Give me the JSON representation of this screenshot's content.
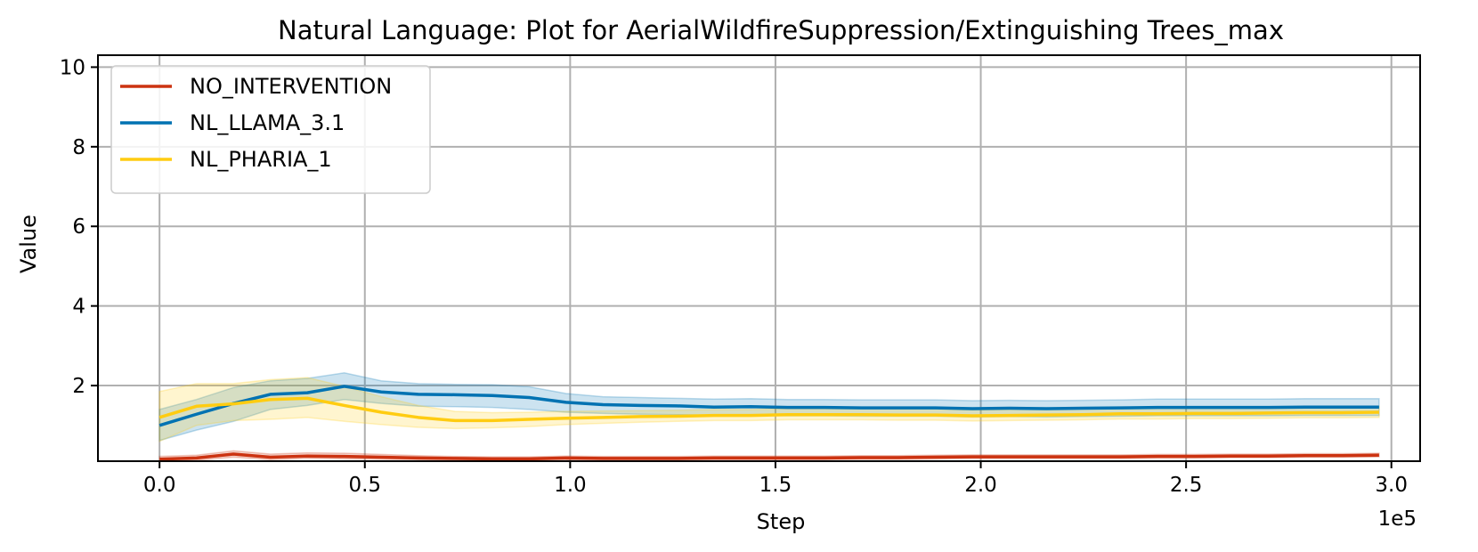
{
  "chart_data": {
    "type": "line",
    "title": "Natural Language: Plot for AerialWildfireSuppression/Extinguishing Trees_max",
    "xlabel": "Step",
    "ylabel": "Value",
    "x_offset_label": "1e5",
    "xlim": [
      -0.15,
      3.07
    ],
    "ylim": [
      0.1,
      10.3
    ],
    "x_ticks": [
      0.0,
      0.5,
      1.0,
      1.5,
      2.0,
      2.5,
      3.0
    ],
    "x_tick_labels": [
      "0.0",
      "0.5",
      "1.0",
      "1.5",
      "2.0",
      "2.5",
      "3.0"
    ],
    "y_ticks": [
      2,
      4,
      6,
      8,
      10
    ],
    "y_tick_labels": [
      "2",
      "4",
      "6",
      "8",
      "10"
    ],
    "grid": true,
    "legend_position": "top-left",
    "x": [
      0.0,
      0.09,
      0.18,
      0.27,
      0.36,
      0.45,
      0.54,
      0.63,
      0.72,
      0.81,
      0.9,
      0.99,
      1.08,
      1.17,
      1.26,
      1.35,
      1.44,
      1.53,
      1.62,
      1.71,
      1.8,
      1.89,
      1.98,
      2.07,
      2.16,
      2.25,
      2.34,
      2.43,
      2.52,
      2.61,
      2.7,
      2.79,
      2.88,
      2.97
    ],
    "series": [
      {
        "name": "NO_INTERVENTION",
        "color": "#cc3311",
        "values": [
          0.15,
          0.18,
          0.28,
          0.2,
          0.23,
          0.22,
          0.2,
          0.18,
          0.17,
          0.16,
          0.16,
          0.18,
          0.17,
          0.17,
          0.17,
          0.18,
          0.18,
          0.18,
          0.18,
          0.19,
          0.19,
          0.2,
          0.21,
          0.21,
          0.21,
          0.21,
          0.21,
          0.22,
          0.22,
          0.23,
          0.23,
          0.24,
          0.24,
          0.25
        ],
        "lower": [
          0.1,
          0.12,
          0.2,
          0.14,
          0.17,
          0.16,
          0.15,
          0.14,
          0.13,
          0.12,
          0.12,
          0.14,
          0.13,
          0.13,
          0.13,
          0.14,
          0.14,
          0.14,
          0.14,
          0.15,
          0.15,
          0.16,
          0.17,
          0.17,
          0.17,
          0.17,
          0.17,
          0.18,
          0.18,
          0.19,
          0.19,
          0.2,
          0.2,
          0.21
        ],
        "upper": [
          0.22,
          0.25,
          0.36,
          0.28,
          0.31,
          0.3,
          0.27,
          0.24,
          0.22,
          0.21,
          0.21,
          0.23,
          0.22,
          0.22,
          0.22,
          0.23,
          0.23,
          0.23,
          0.23,
          0.24,
          0.24,
          0.25,
          0.26,
          0.26,
          0.26,
          0.26,
          0.26,
          0.27,
          0.27,
          0.28,
          0.28,
          0.29,
          0.29,
          0.3
        ]
      },
      {
        "name": "NL_LLAMA_3.1",
        "color": "#0072b2",
        "values": [
          1.0,
          1.28,
          1.55,
          1.78,
          1.82,
          1.98,
          1.84,
          1.78,
          1.77,
          1.75,
          1.7,
          1.58,
          1.52,
          1.5,
          1.49,
          1.46,
          1.47,
          1.45,
          1.45,
          1.44,
          1.44,
          1.44,
          1.42,
          1.43,
          1.42,
          1.43,
          1.44,
          1.45,
          1.45,
          1.45,
          1.45,
          1.46,
          1.46,
          1.46
        ],
        "lower": [
          0.62,
          0.88,
          1.1,
          1.4,
          1.5,
          1.65,
          1.55,
          1.48,
          1.47,
          1.45,
          1.4,
          1.33,
          1.3,
          1.28,
          1.27,
          1.25,
          1.26,
          1.24,
          1.24,
          1.23,
          1.23,
          1.23,
          1.21,
          1.22,
          1.21,
          1.22,
          1.23,
          1.24,
          1.24,
          1.24,
          1.24,
          1.25,
          1.25,
          1.25
        ],
        "upper": [
          1.4,
          1.65,
          1.95,
          2.12,
          2.18,
          2.32,
          2.12,
          2.05,
          2.03,
          2.02,
          1.97,
          1.8,
          1.72,
          1.7,
          1.68,
          1.66,
          1.67,
          1.65,
          1.65,
          1.64,
          1.64,
          1.64,
          1.62,
          1.63,
          1.62,
          1.63,
          1.64,
          1.66,
          1.66,
          1.66,
          1.66,
          1.67,
          1.67,
          1.67
        ]
      },
      {
        "name": "NL_PHARIA_1",
        "color": "#ffcc11",
        "values": [
          1.2,
          1.48,
          1.54,
          1.65,
          1.68,
          1.5,
          1.33,
          1.2,
          1.12,
          1.12,
          1.15,
          1.18,
          1.2,
          1.22,
          1.23,
          1.25,
          1.25,
          1.27,
          1.27,
          1.27,
          1.26,
          1.26,
          1.24,
          1.25,
          1.26,
          1.27,
          1.29,
          1.29,
          1.3,
          1.3,
          1.31,
          1.32,
          1.32,
          1.33
        ],
        "lower": [
          0.6,
          1.0,
          1.12,
          1.15,
          1.2,
          1.1,
          1.02,
          0.95,
          0.92,
          0.94,
          0.97,
          1.02,
          1.05,
          1.08,
          1.1,
          1.12,
          1.12,
          1.14,
          1.14,
          1.14,
          1.13,
          1.13,
          1.11,
          1.12,
          1.13,
          1.14,
          1.16,
          1.16,
          1.17,
          1.17,
          1.18,
          1.19,
          1.19,
          1.2
        ],
        "upper": [
          1.85,
          2.05,
          2.05,
          2.15,
          2.2,
          1.98,
          1.72,
          1.5,
          1.35,
          1.32,
          1.33,
          1.35,
          1.36,
          1.37,
          1.38,
          1.4,
          1.4,
          1.42,
          1.42,
          1.42,
          1.41,
          1.41,
          1.39,
          1.4,
          1.41,
          1.42,
          1.44,
          1.44,
          1.45,
          1.45,
          1.46,
          1.47,
          1.47,
          1.48
        ]
      }
    ]
  }
}
